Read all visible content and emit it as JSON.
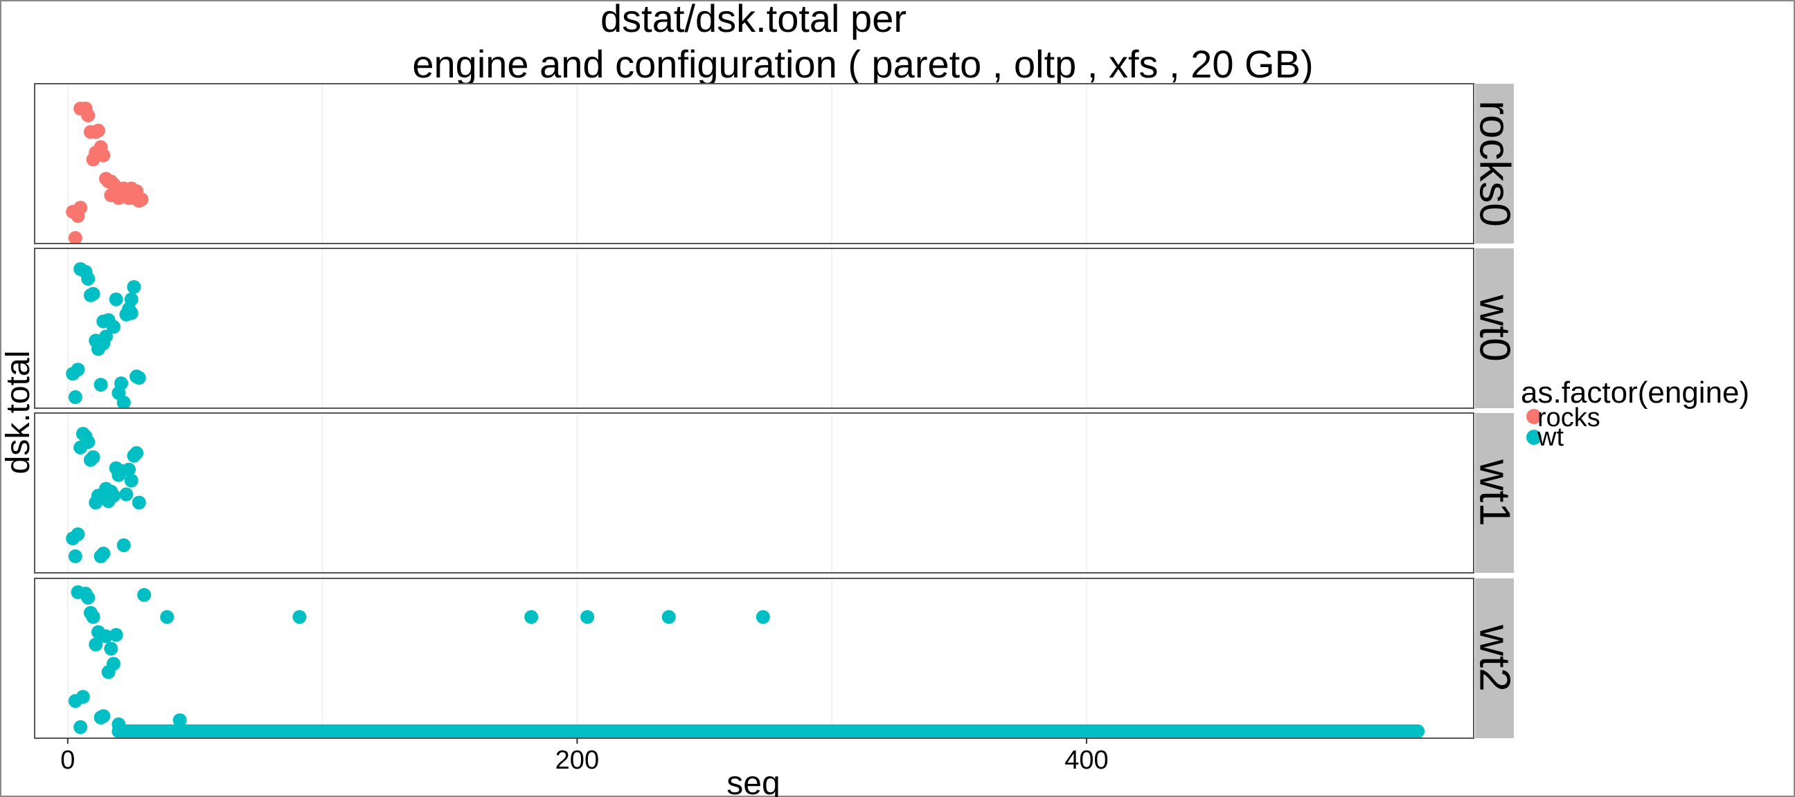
{
  "chart_data": {
    "type": "scatter",
    "title_line1": "dstat/dsk.total per",
    "title_line2": "engine and configuration ( pareto , oltp , xfs ,  20 GB)",
    "xlabel": "seq",
    "ylabel": "dsk.total",
    "xlim": [
      -13,
      552
    ],
    "x_ticks": [
      0,
      200,
      400
    ],
    "x_tick_labels": [
      "0",
      "200",
      "400"
    ],
    "y_axis_labels_shown": false,
    "grid": true,
    "legend": {
      "title": "as.factor(engine)",
      "placement": "right",
      "entries": [
        {
          "label": "rocks",
          "color": "#F8766D"
        },
        {
          "label": "wt",
          "color": "#00BFC4"
        }
      ]
    },
    "panels": [
      {
        "label": "rocks0",
        "engine": "rocks",
        "points": [
          [
            2,
            0.17
          ],
          [
            3,
            -0.02
          ],
          [
            4,
            0.14
          ],
          [
            5,
            0.2
          ],
          [
            5,
            0.92
          ],
          [
            7,
            0.92
          ],
          [
            8,
            0.87
          ],
          [
            9,
            0.75
          ],
          [
            10,
            0.55
          ],
          [
            11,
            0.75
          ],
          [
            11,
            0.6
          ],
          [
            12,
            0.76
          ],
          [
            13,
            0.64
          ],
          [
            14,
            0.58
          ],
          [
            15,
            0.41
          ],
          [
            16,
            0.39
          ],
          [
            17,
            0.39
          ],
          [
            17,
            0.29
          ],
          [
            18,
            0.37
          ],
          [
            19,
            0.29
          ],
          [
            19,
            0.35
          ],
          [
            20,
            0.27
          ],
          [
            21,
            0.32
          ],
          [
            22,
            0.34
          ],
          [
            23,
            0.31
          ],
          [
            24,
            0.27
          ],
          [
            25,
            0.34
          ],
          [
            26,
            0.27
          ],
          [
            27,
            0.32
          ],
          [
            28,
            0.25
          ],
          [
            29,
            0.26
          ]
        ]
      },
      {
        "label": "wt0",
        "engine": "wt",
        "points": [
          [
            2,
            0.19
          ],
          [
            3,
            0.02
          ],
          [
            4,
            0.22
          ],
          [
            5,
            0.95
          ],
          [
            7,
            0.93
          ],
          [
            8,
            0.88
          ],
          [
            9,
            0.76
          ],
          [
            10,
            0.77
          ],
          [
            11,
            0.43
          ],
          [
            12,
            0.37
          ],
          [
            13,
            0.11
          ],
          [
            14,
            0.41
          ],
          [
            14,
            0.57
          ],
          [
            15,
            0.46
          ],
          [
            16,
            0.58
          ],
          [
            18,
            0.53
          ],
          [
            19,
            0.73
          ],
          [
            20,
            0.05
          ],
          [
            21,
            0.12
          ],
          [
            22,
            -0.02
          ],
          [
            23,
            0.62
          ],
          [
            24,
            0.66
          ],
          [
            25,
            0.63
          ],
          [
            25,
            0.73
          ],
          [
            26,
            0.82
          ],
          [
            27,
            0.17
          ],
          [
            28,
            0.16
          ]
        ]
      },
      {
        "label": "wt1",
        "engine": "wt",
        "points": [
          [
            2,
            0.19
          ],
          [
            3,
            0.06
          ],
          [
            4,
            0.22
          ],
          [
            5,
            0.85
          ],
          [
            6,
            0.95
          ],
          [
            7,
            0.93
          ],
          [
            8,
            0.89
          ],
          [
            9,
            0.76
          ],
          [
            10,
            0.78
          ],
          [
            11,
            0.45
          ],
          [
            12,
            0.5
          ],
          [
            13,
            0.06
          ],
          [
            14,
            0.08
          ],
          [
            15,
            0.55
          ],
          [
            16,
            0.46
          ],
          [
            17,
            0.53
          ],
          [
            18,
            0.5
          ],
          [
            19,
            0.7
          ],
          [
            20,
            0.65
          ],
          [
            21,
            0.68
          ],
          [
            22,
            0.14
          ],
          [
            23,
            0.51
          ],
          [
            24,
            0.69
          ],
          [
            25,
            0.61
          ],
          [
            26,
            0.79
          ],
          [
            27,
            0.81
          ],
          [
            28,
            0.45
          ]
        ]
      },
      {
        "label": "wt2",
        "engine": "wt",
        "points": [
          [
            3,
            0.21
          ],
          [
            4,
            1.0
          ],
          [
            5,
            0.02
          ],
          [
            6,
            0.24
          ],
          [
            7,
            0.99
          ],
          [
            8,
            0.96
          ],
          [
            9,
            0.85
          ],
          [
            10,
            0.82
          ],
          [
            11,
            0.62
          ],
          [
            12,
            0.71
          ],
          [
            13,
            0.09
          ],
          [
            14,
            0.1
          ],
          [
            15,
            0.68
          ],
          [
            16,
            0.42
          ],
          [
            17,
            0.59
          ],
          [
            18,
            0.48
          ],
          [
            19,
            0.69
          ],
          [
            20,
            0.04
          ],
          [
            30,
            0.98
          ],
          [
            39,
            0.82
          ],
          [
            44,
            0.07
          ],
          [
            91,
            0.82
          ],
          [
            182,
            0.82
          ],
          [
            204,
            0.82
          ],
          [
            236,
            0.82
          ],
          [
            273,
            0.82
          ]
        ],
        "baseline": {
          "x_start": 20,
          "x_end": 530,
          "step": 1,
          "y": 0.0
        }
      }
    ]
  }
}
